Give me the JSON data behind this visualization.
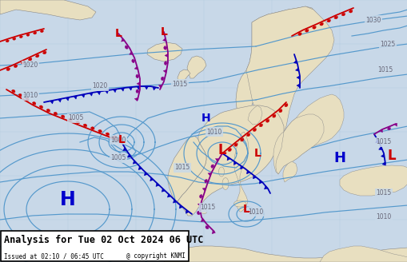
{
  "title": "Analysis for Tue 02 Oct 2024 06 UTC",
  "subtitle": "Issued at 02:10 / 06:45 UTC",
  "copyright": "@ copyright KNMI",
  "bg_ocean": "#c8d8e8",
  "bg_land": "#e8dfc0",
  "isobar_color": "#5599cc",
  "grid_color": "#b0c8dd",
  "front_warm_color": "#cc0000",
  "front_cold_color": "#0000bb",
  "front_occluded_color": "#880088",
  "label_H_color": "#0000cc",
  "label_L_color": "#cc0000",
  "pressure_label_color": "#666677",
  "text_box_bg": "#ffffff",
  "title_fontsize": 8.5,
  "subtitle_fontsize": 5.5,
  "figsize": [
    5.1,
    3.28
  ],
  "dpi": 100
}
